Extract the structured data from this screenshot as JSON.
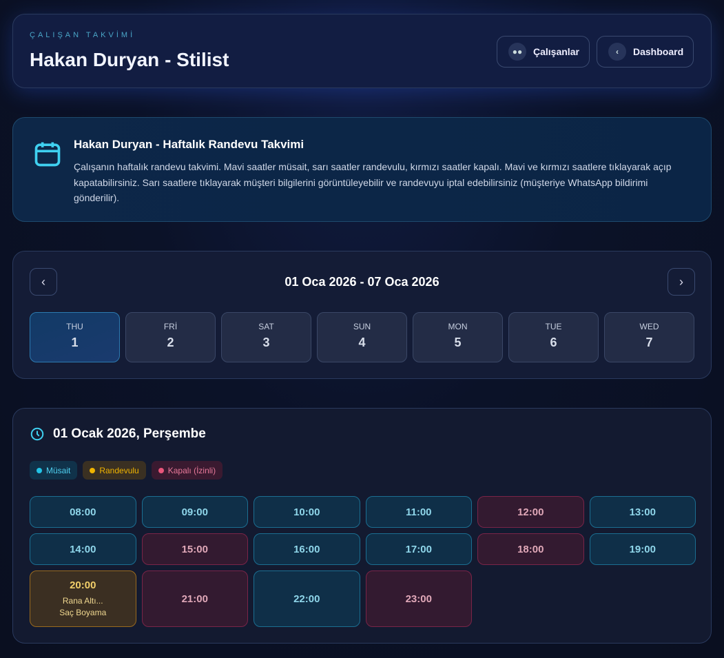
{
  "header": {
    "eyebrow": "ÇALIŞAN TAKVİMİ",
    "title": "Hakan Duryan - Stilist",
    "employees_label": "Çalışanlar",
    "dashboard_label": "Dashboard"
  },
  "info": {
    "title": "Hakan Duryan - Haftalık Randevu Takvimi",
    "text": "Çalışanın haftalık randevu takvimi. Mavi saatler müsait, sarı saatler randevulu, kırmızı saatler kapalı. Mavi ve kırmızı saatlere tıklayarak açıp kapatabilirsiniz. Sarı saatlere tıklayarak müşteri bilgilerini görüntüleyebilir ve randevuyu iptal edebilirsiniz (müşteriye WhatsApp bildirimi gönderilir)."
  },
  "week": {
    "range": "01 Oca 2026 - 07 Oca 2026",
    "days": [
      {
        "name": "THU",
        "num": "1",
        "selected": true
      },
      {
        "name": "FRİ",
        "num": "2"
      },
      {
        "name": "SAT",
        "num": "3"
      },
      {
        "name": "SUN",
        "num": "4"
      },
      {
        "name": "MON",
        "num": "5"
      },
      {
        "name": "TUE",
        "num": "6"
      },
      {
        "name": "WED",
        "num": "7"
      }
    ]
  },
  "slots": {
    "title": "01 Ocak 2026, Perşembe",
    "legend": {
      "available": "Müsait",
      "booked": "Randevulu",
      "closed": "Kapalı (İzinli)"
    },
    "colors": {
      "available": "#22c3e6",
      "booked": "#f0b400",
      "closed": "#e8557a"
    },
    "items": [
      {
        "time": "08:00",
        "status": "available"
      },
      {
        "time": "09:00",
        "status": "available"
      },
      {
        "time": "10:00",
        "status": "available"
      },
      {
        "time": "11:00",
        "status": "available"
      },
      {
        "time": "12:00",
        "status": "closed"
      },
      {
        "time": "13:00",
        "status": "available"
      },
      {
        "time": "14:00",
        "status": "available"
      },
      {
        "time": "15:00",
        "status": "closed"
      },
      {
        "time": "16:00",
        "status": "available"
      },
      {
        "time": "17:00",
        "status": "available"
      },
      {
        "time": "18:00",
        "status": "closed"
      },
      {
        "time": "19:00",
        "status": "available"
      },
      {
        "time": "20:00",
        "status": "booked",
        "customer": "Rana Altı...",
        "service": "Saç Boyama"
      },
      {
        "time": "21:00",
        "status": "closed"
      },
      {
        "time": "22:00",
        "status": "available"
      },
      {
        "time": "23:00",
        "status": "closed"
      }
    ]
  }
}
